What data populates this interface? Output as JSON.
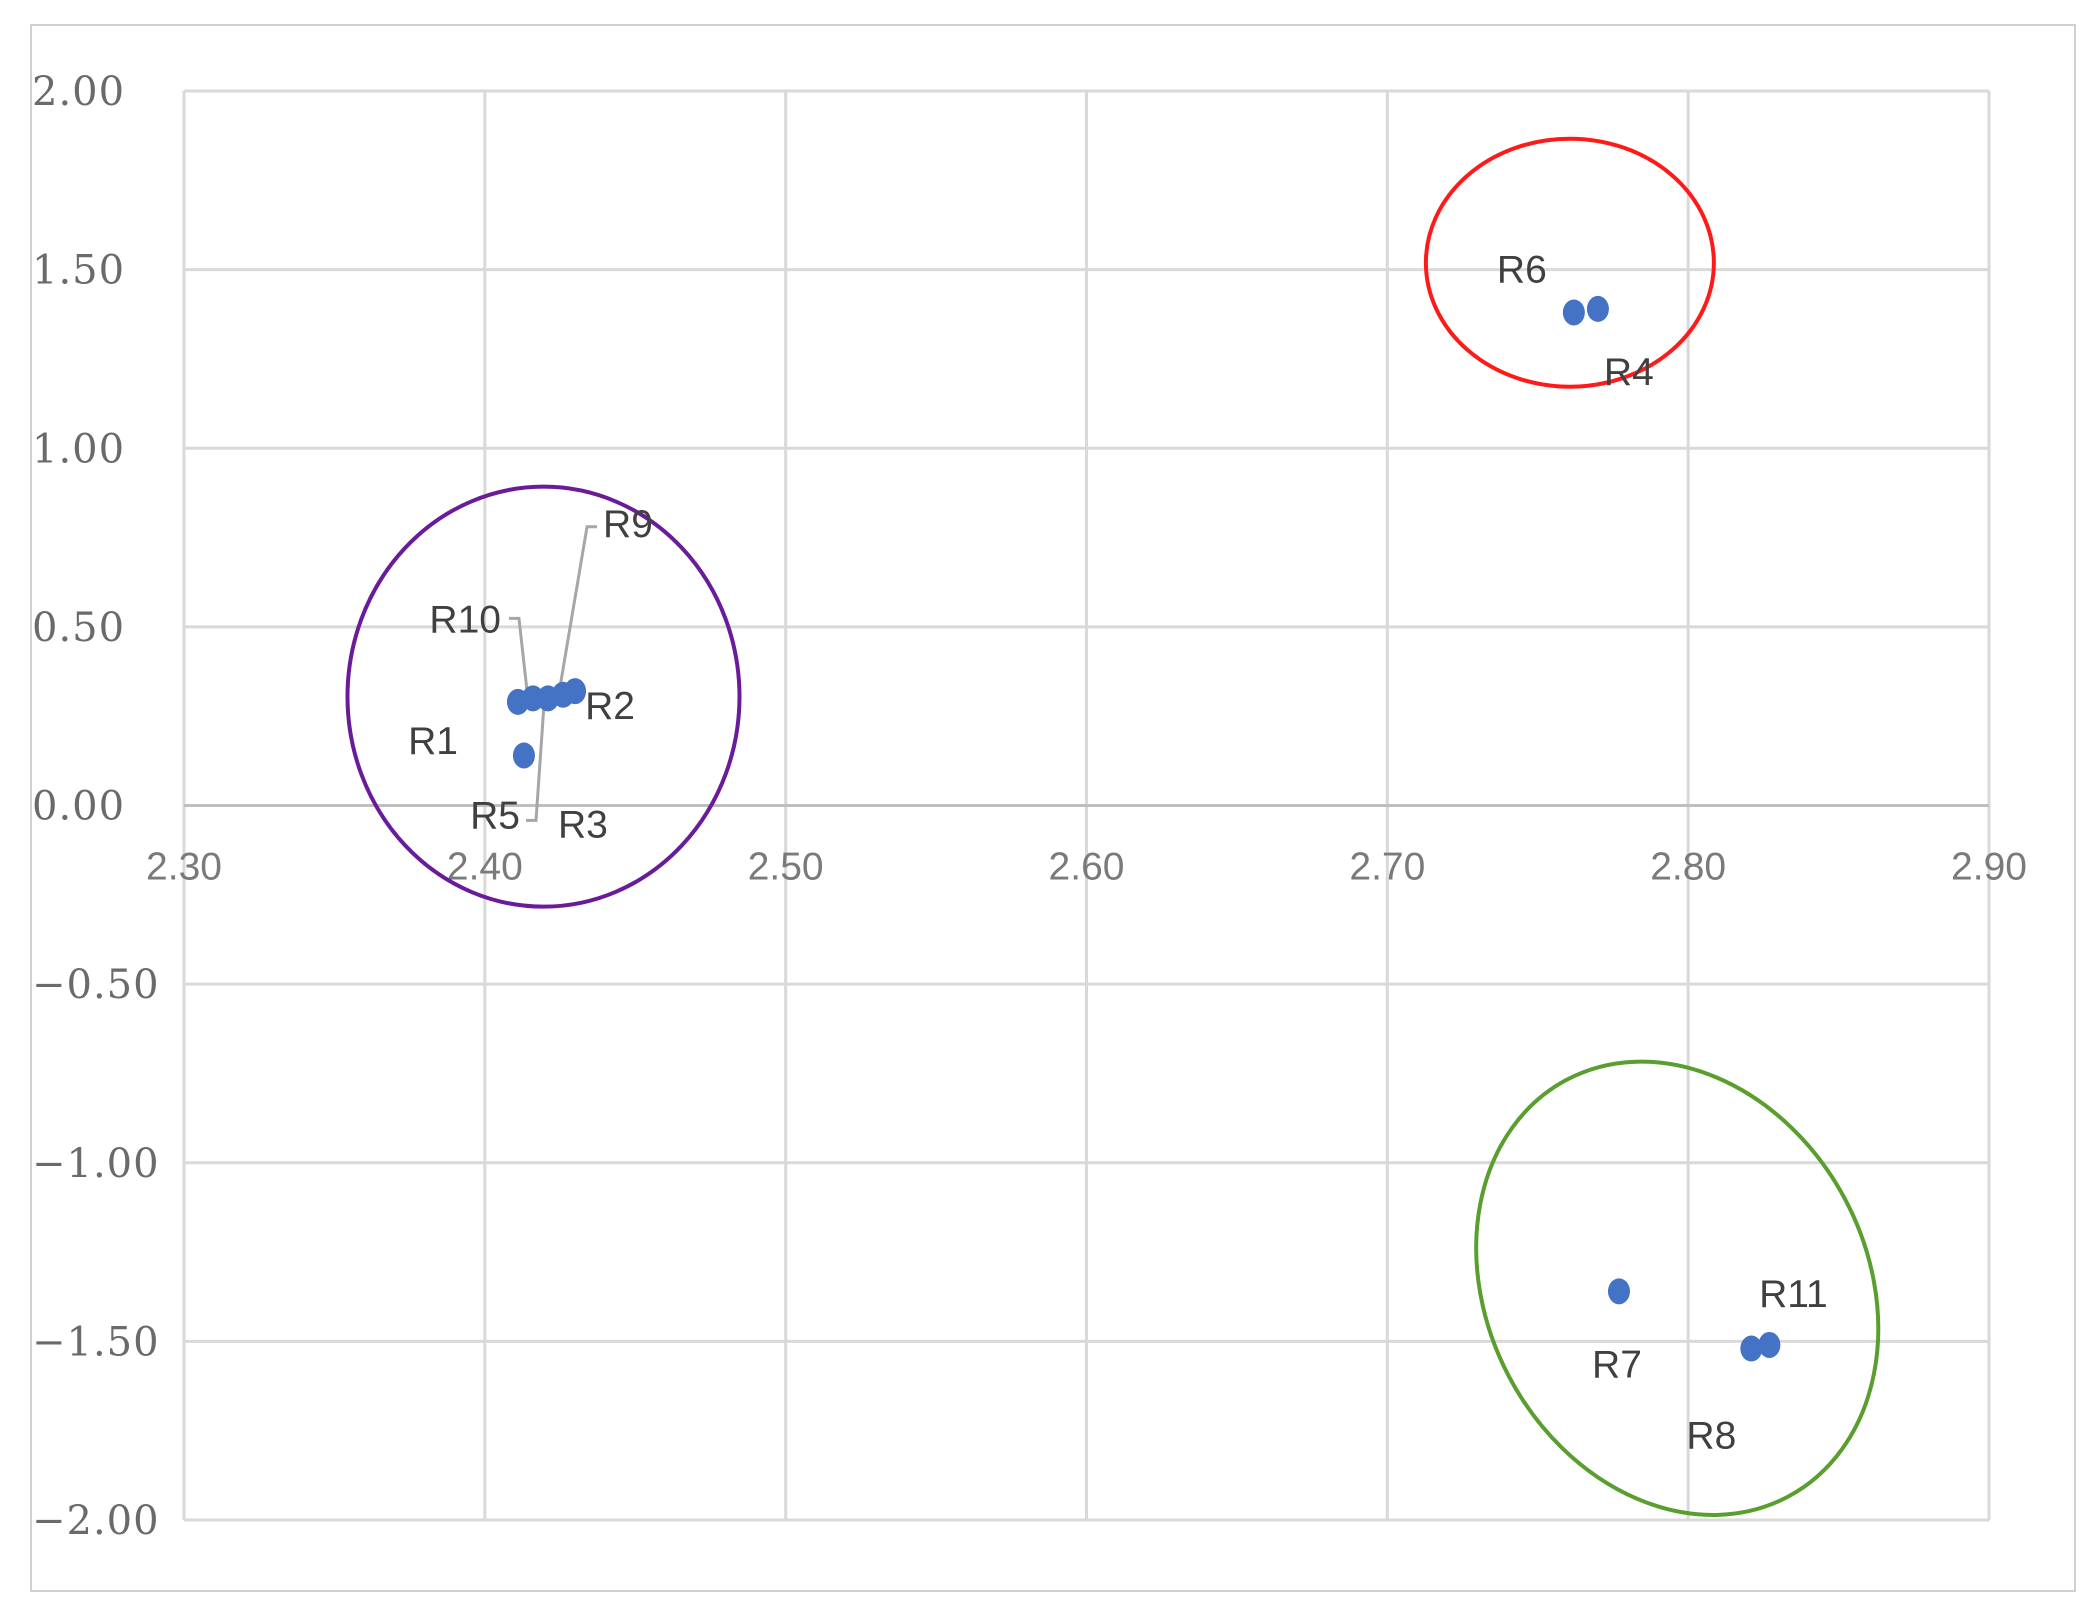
{
  "chart_data": {
    "type": "scatter",
    "title": "",
    "xlabel": "",
    "ylabel": "",
    "xlim": [
      2.3,
      2.9
    ],
    "ylim": [
      -2.0,
      2.0
    ],
    "x_ticks": [
      "2.30",
      "2.40",
      "2.50",
      "2.60",
      "2.70",
      "2.80",
      "2.90"
    ],
    "y_ticks": [
      "2.00",
      "1.50",
      "1.00",
      "0.50",
      "0.00",
      "−0.50",
      "−1.00",
      "−1.50",
      "−2.00"
    ],
    "grid": true,
    "legend": "none",
    "marker_color": "#4472C4",
    "points": [
      {
        "label": "R1",
        "x": 2.411,
        "y": 0.29
      },
      {
        "label": "R2",
        "x": 2.43,
        "y": 0.32
      },
      {
        "label": "R3",
        "x": 2.413,
        "y": 0.14
      },
      {
        "label": "R4",
        "x": 2.77,
        "y": 1.39
      },
      {
        "label": "R5",
        "x": 2.421,
        "y": 0.3
      },
      {
        "label": "R6",
        "x": 2.762,
        "y": 1.38
      },
      {
        "label": "R7",
        "x": 2.777,
        "y": -1.36
      },
      {
        "label": "R8",
        "x": 2.821,
        "y": -1.52
      },
      {
        "label": "R9",
        "x": 2.426,
        "y": 0.31
      },
      {
        "label": "R10",
        "x": 2.416,
        "y": 0.3
      },
      {
        "label": "R11",
        "x": 2.827,
        "y": -1.51
      }
    ],
    "clusters": [
      {
        "color": "#6A1B9A",
        "members": [
          "R1",
          "R2",
          "R3",
          "R5",
          "R9",
          "R10"
        ]
      },
      {
        "color": "#FF1A1A",
        "members": [
          "R4",
          "R6"
        ]
      },
      {
        "color": "#5A9E2F",
        "members": [
          "R7",
          "R8",
          "R11"
        ]
      }
    ]
  }
}
